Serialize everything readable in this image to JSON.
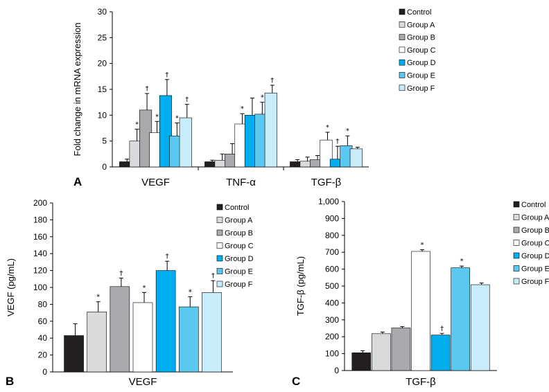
{
  "groups": [
    "Control",
    "Group A",
    "Group B",
    "Group C",
    "Group D",
    "Group E",
    "Group F"
  ],
  "colors": {
    "Control": "#231f20",
    "Group A": "#d9dadb",
    "Group B": "#a7a9ac",
    "Group C": "#ffffff",
    "Group D": "#00aeef",
    "Group E": "#5bc8ef",
    "Group F": "#c9ecfb"
  },
  "chart_data": [
    {
      "panel": "A",
      "type": "bar",
      "ylabel": "Fold change in mRNA expression",
      "ylim": [
        0,
        30
      ],
      "yticks": [
        "0",
        "5",
        "10",
        "15",
        "20",
        "25",
        "30"
      ],
      "categories": [
        "VEGF",
        "TNF-α",
        "TGF-β"
      ],
      "series": [
        {
          "name": "Control",
          "values": [
            1.0,
            1.0,
            1.0
          ],
          "errors": [
            0.5,
            0.3,
            0.4
          ],
          "marks": [
            "",
            "",
            ""
          ]
        },
        {
          "name": "Group A",
          "values": [
            5.0,
            1.3,
            1.1
          ],
          "errors": [
            2.3,
            1.2,
            0.8
          ],
          "marks": [
            "*",
            "",
            ""
          ]
        },
        {
          "name": "Group B",
          "values": [
            11.0,
            2.5,
            1.4
          ],
          "errors": [
            3.2,
            2.0,
            0.8
          ],
          "marks": [
            "†",
            "",
            ""
          ]
        },
        {
          "name": "Group C",
          "values": [
            6.6,
            8.3,
            5.2
          ],
          "errors": [
            2.2,
            2.0,
            1.5
          ],
          "marks": [
            "*",
            "*",
            "*"
          ]
        },
        {
          "name": "Group D",
          "values": [
            13.8,
            10.0,
            1.5
          ],
          "errors": [
            3.1,
            3.3,
            2.5
          ],
          "marks": [
            "†",
            "",
            "†"
          ]
        },
        {
          "name": "Group E",
          "values": [
            6.0,
            10.2,
            4.1
          ],
          "errors": [
            2.5,
            2.3,
            1.9
          ],
          "marks": [
            "*",
            "*",
            "*"
          ]
        },
        {
          "name": "Group F",
          "values": [
            9.5,
            14.3,
            3.5
          ],
          "errors": [
            2.6,
            1.5,
            0.3
          ],
          "marks": [
            "†",
            "†",
            ""
          ]
        }
      ]
    },
    {
      "panel": "B",
      "type": "bar",
      "ylabel": "VEGF (pg/mL)",
      "ylim": [
        0,
        200
      ],
      "yticks": [
        "0",
        "20",
        "40",
        "60",
        "80",
        "100",
        "120",
        "140",
        "160",
        "180",
        "200"
      ],
      "categories": [
        "VEGF"
      ],
      "series": [
        {
          "name": "Control",
          "values": [
            43
          ],
          "errors": [
            14
          ],
          "marks": [
            ""
          ]
        },
        {
          "name": "Group A",
          "values": [
            71
          ],
          "errors": [
            12
          ],
          "marks": [
            "*"
          ]
        },
        {
          "name": "Group B",
          "values": [
            101
          ],
          "errors": [
            10
          ],
          "marks": [
            "†"
          ]
        },
        {
          "name": "Group C",
          "values": [
            82
          ],
          "errors": [
            12
          ],
          "marks": [
            "*"
          ]
        },
        {
          "name": "Group D",
          "values": [
            120
          ],
          "errors": [
            11
          ],
          "marks": [
            "†"
          ]
        },
        {
          "name": "Group E",
          "values": [
            77
          ],
          "errors": [
            12
          ],
          "marks": [
            "*"
          ]
        },
        {
          "name": "Group F",
          "values": [
            94
          ],
          "errors": [
            14
          ],
          "marks": [
            "†"
          ]
        }
      ]
    },
    {
      "panel": "C",
      "type": "bar",
      "ylabel": "TGF-β (pg/mL)",
      "ylim": [
        0,
        1000
      ],
      "yticks": [
        "0",
        "100",
        "200",
        "300",
        "400",
        "500",
        "600",
        "700",
        "800",
        "900",
        "1,000"
      ],
      "categories": [
        "TGF-β"
      ],
      "series": [
        {
          "name": "Control",
          "values": [
            105
          ],
          "errors": [
            12
          ],
          "marks": [
            ""
          ]
        },
        {
          "name": "Group A",
          "values": [
            218
          ],
          "errors": [
            10
          ],
          "marks": [
            ""
          ]
        },
        {
          "name": "Group B",
          "values": [
            252
          ],
          "errors": [
            8
          ],
          "marks": [
            ""
          ]
        },
        {
          "name": "Group C",
          "values": [
            705
          ],
          "errors": [
            10
          ],
          "marks": [
            "*"
          ]
        },
        {
          "name": "Group D",
          "values": [
            210
          ],
          "errors": [
            10
          ],
          "marks": [
            "†"
          ]
        },
        {
          "name": "Group E",
          "values": [
            608
          ],
          "errors": [
            10
          ],
          "marks": [
            "*"
          ]
        },
        {
          "name": "Group F",
          "values": [
            508
          ],
          "errors": [
            10
          ],
          "marks": [
            ""
          ]
        }
      ]
    }
  ]
}
